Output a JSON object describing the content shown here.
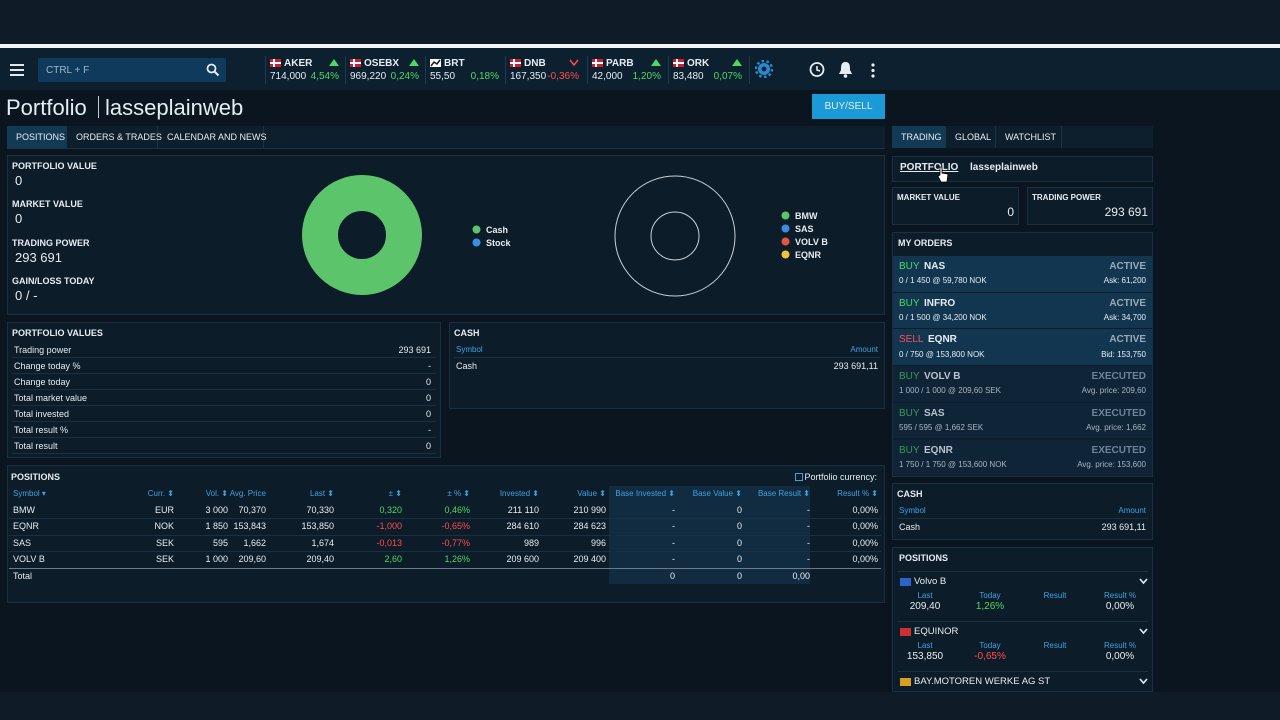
{
  "nav": {
    "search_placeholder": "CTRL + F",
    "tickers": [
      {
        "name": "AKER",
        "price": "714,000",
        "change": "4,54%",
        "trend": "up",
        "color": "#4cd964"
      },
      {
        "name": "OSEBX",
        "price": "969,220",
        "change": "0,24%",
        "trend": "up",
        "color": "#4cd964"
      },
      {
        "name": "BRT",
        "price": "55,50",
        "change": "0,18%",
        "color": "#4cd964"
      },
      {
        "name": "DNB",
        "price": "167,350",
        "change": "-0,36%",
        "trend": "down",
        "color": "#ff4d4d"
      },
      {
        "name": "PARB",
        "price": "42,000",
        "change": "1,20%",
        "trend": "up",
        "color": "#4cd964"
      },
      {
        "name": "ORK",
        "price": "83,480",
        "change": "0,07%",
        "trend": "up",
        "color": "#4cd964"
      }
    ]
  },
  "header": {
    "title": "Portfolio",
    "account": "lasseplainweb",
    "button": "BUY/SELL"
  },
  "tabs": [
    "POSITIONS",
    "ORDERS & TRADES",
    "CALENDAR AND NEWS"
  ],
  "summary": [
    {
      "label": "PORTFOLIO VALUE",
      "value": "0"
    },
    {
      "label": "MARKET VALUE",
      "value": "0"
    },
    {
      "label": "TRADING POWER",
      "value": "293 691"
    },
    {
      "label": "GAIN/LOSS TODAY",
      "value": "0 / -"
    }
  ],
  "legend_1": [
    {
      "name": "Cash",
      "color": "#5cc46a"
    },
    {
      "name": "Stock",
      "color": "#3b8fe0"
    }
  ],
  "legend_2": [
    {
      "name": "BMW",
      "color": "#5cc46a"
    },
    {
      "name": "SAS",
      "color": "#3b8fe0"
    },
    {
      "name": "VOLV B",
      "color": "#e4573d"
    },
    {
      "name": "EQNR",
      "color": "#f0c040"
    }
  ],
  "portfolio_values": {
    "title": "PORTFOLIO VALUES",
    "rows": [
      [
        "Trading power",
        "293 691"
      ],
      [
        "Change today %",
        "-"
      ],
      [
        "Change today",
        "0"
      ],
      [
        "Total market value",
        "0"
      ],
      [
        "Total invested",
        "0"
      ],
      [
        "Total result %",
        "-"
      ],
      [
        "Total result",
        "0"
      ]
    ]
  },
  "cash": {
    "title": "CASH",
    "header": [
      "Symbol",
      "Amount"
    ],
    "rows": [
      [
        "Cash",
        "293 691,11"
      ]
    ]
  },
  "positions": {
    "title": "POSITIONS",
    "currency_toggle": "Portfolio currency:",
    "header": [
      "Symbol ▾",
      "Curr. ⬍",
      "Vol. ⬍",
      "Avg. Price",
      "Last ⬍",
      "± ⬍",
      "± % ⬍",
      "Invested ⬍",
      "Value ⬍",
      "Base Invested ⬍",
      "Base Value ⬍",
      "Base Result ⬍",
      "Result % ⬍"
    ],
    "rows": [
      [
        "BMW",
        "EUR",
        "3 000",
        "70,370",
        "70,330",
        "0,320",
        "0,46%",
        "211 110",
        "210 990",
        "-",
        "0",
        "-",
        "0,00%"
      ],
      [
        "EQNR",
        "NOK",
        "1 850",
        "153,843",
        "153,850",
        "-1,000",
        "-0,65%",
        "284 610",
        "284 623",
        "-",
        "0",
        "-",
        "0,00%"
      ],
      [
        "SAS",
        "SEK",
        "595",
        "1,662",
        "1,674",
        "-0,013",
        "-0,77%",
        "989",
        "996",
        "-",
        "0",
        "-",
        "0,00%"
      ],
      [
        "VOLV B",
        "SEK",
        "1 000",
        "209,60",
        "209,40",
        "2,60",
        "1,26%",
        "209 600",
        "209 400",
        "-",
        "0",
        "-",
        "0,00%"
      ]
    ],
    "total": {
      "label": "Total",
      "base_invested": "0",
      "base_value": "0",
      "base_result": "0,00"
    }
  },
  "side": {
    "tabs": [
      "TRADING",
      "GLOBAL",
      "WATCHLIST"
    ],
    "portfolio_link": "PORTFOLIO",
    "account": "lasseplainweb",
    "market_value": {
      "label": "MARKET VALUE",
      "value": "0"
    },
    "trading_power": {
      "label": "TRADING POWER",
      "value": "293 691"
    },
    "orders_title": "MY ORDERS",
    "orders": [
      {
        "side": "BUY",
        "symbol": "NAS",
        "status": "ACTIVE",
        "detail": "0 / 1 450 @ 59,780 NOK",
        "price": "Ask: 61,200"
      },
      {
        "side": "BUY",
        "symbol": "INFRO",
        "status": "ACTIVE",
        "detail": "0 / 1 500 @ 34,200 NOK",
        "price": "Ask: 34,700"
      },
      {
        "side": "SELL",
        "symbol": "EQNR",
        "status": "ACTIVE",
        "detail": "0 / 750 @ 153,800 NOK",
        "price": "Bid: 153,750"
      },
      {
        "side": "BUY",
        "symbol": "VOLV B",
        "status": "EXECUTED",
        "detail": "1 000 / 1 000 @ 209,60 SEK",
        "price": "Avg. price: 209,60"
      },
      {
        "side": "BUY",
        "symbol": "SAS",
        "status": "EXECUTED",
        "detail": "595 / 595 @ 1,662 SEK",
        "price": "Avg. price: 1,662"
      },
      {
        "side": "BUY",
        "symbol": "EQNR",
        "status": "EXECUTED",
        "detail": "1 750 / 1 750 @ 153,600 NOK",
        "price": "Avg. price: 153,600"
      }
    ],
    "cash": {
      "title": "CASH",
      "header": [
        "Symbol",
        "Amount"
      ],
      "rows": [
        [
          "Cash",
          "293 691,11"
        ]
      ]
    },
    "positions_title": "POSITIONS",
    "position_headers": [
      "Last",
      "Today",
      "Result",
      "Result %"
    ],
    "positions": [
      {
        "name": "Volvo B",
        "flag": "#2a64c8",
        "values": [
          "209,40",
          "1,26%",
          "",
          "0,00%"
        ]
      },
      {
        "name": "EQUINOR",
        "flag": "#d03030",
        "values": [
          "153,850",
          "-0,65%",
          "",
          "0,00%"
        ]
      },
      {
        "name": "BAY.MOTOREN WERKE AG ST",
        "flag": "#d8a020"
      }
    ]
  }
}
